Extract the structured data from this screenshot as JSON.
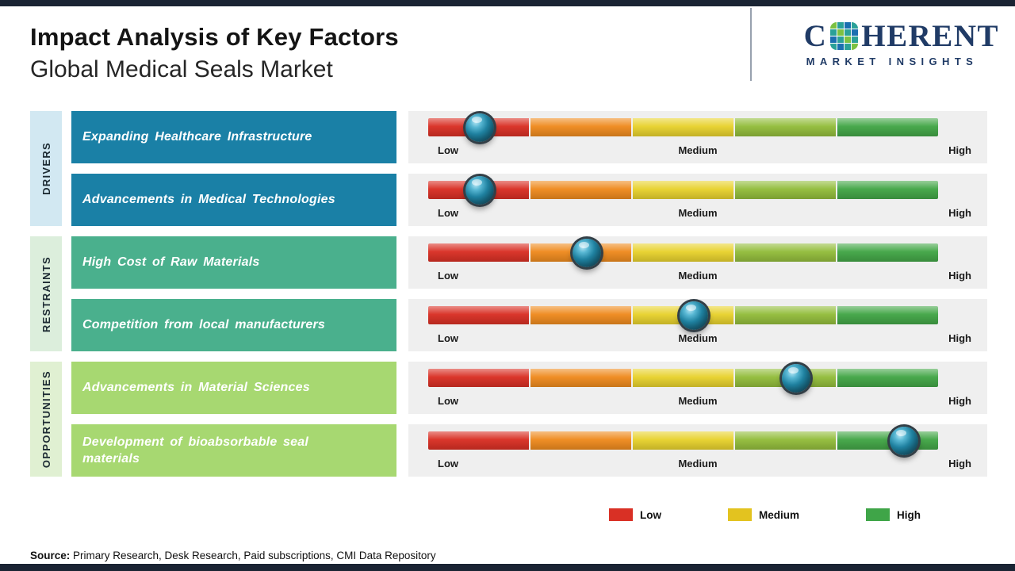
{
  "page": {
    "title": "Impact Analysis of Key Factors",
    "subtitle": "Global Medical Seals Market",
    "source_label": "Source:",
    "source_text": " Primary Research, Desk Research, Paid subscriptions, CMI Data Repository"
  },
  "logo": {
    "brand_prefix": "C",
    "brand_suffix": "HERENT",
    "tagline": "MARKET INSIGHTS",
    "mosaic_colors": [
      "#7cc142",
      "#2aa198",
      "#1b6fb0",
      "#2aa198",
      "#2aa198",
      "#7cc142",
      "#2aa198",
      "#1b6fb0",
      "#1b6fb0",
      "#2aa198",
      "#7cc142",
      "#2aa198",
      "#2aa198",
      "#1b6fb0",
      "#2aa198",
      "#7cc142"
    ]
  },
  "scale_labels": {
    "low": "Low",
    "medium": "Medium",
    "high": "High"
  },
  "legend": [
    {
      "label": "Low",
      "color": "#d93025"
    },
    {
      "label": "Medium",
      "color": "#e3c31f"
    },
    {
      "label": "High",
      "color": "#3fa548"
    }
  ],
  "colors": {
    "top_bar": "#1a2433",
    "logo_navy": "#203b66",
    "drivers_tab_bg": "#d2e8f2",
    "restraints_tab_bg": "#dceedc",
    "opportunities_tab_bg": "#e0f0d2",
    "drivers_box": "#1a80a6",
    "restraints_box": "#4ab08d",
    "opportunities_box": "#a7d871",
    "row_strip": "#efefef",
    "segment_1": "#d93025",
    "segment_2": "#ef8b1f",
    "segment_3": "#e8d22e",
    "segment_4": "#93bd3c",
    "segment_5": "#43a647"
  },
  "chart_data": {
    "type": "slider-scale",
    "title": "Impact Analysis of Key Factors",
    "subtitle": "Global Medical Seals Market",
    "scale": [
      "Low",
      "Medium",
      "High"
    ],
    "legend_position": "bottom-right",
    "groups": [
      {
        "name": "DRIVERS",
        "factors": [
          {
            "label": "Expanding Healthcare Infrastructure",
            "impact": "Low",
            "position": 0.1
          },
          {
            "label": "Advancements in Medical Technologies",
            "impact": "Low",
            "position": 0.1
          }
        ]
      },
      {
        "name": "RESTRAINTS",
        "factors": [
          {
            "label": "High Cost of Raw Materials",
            "impact": "Low-Medium",
            "position": 0.31
          },
          {
            "label": "Competition from local manufacturers",
            "impact": "Medium",
            "position": 0.52
          }
        ]
      },
      {
        "name": "OPPORTUNITIES",
        "factors": [
          {
            "label": "Advancements in Material Sciences",
            "impact": "Medium-High",
            "position": 0.72
          },
          {
            "label": "Development of bioabsorbable seal materials",
            "impact": "High",
            "position": 0.93
          }
        ]
      }
    ]
  }
}
